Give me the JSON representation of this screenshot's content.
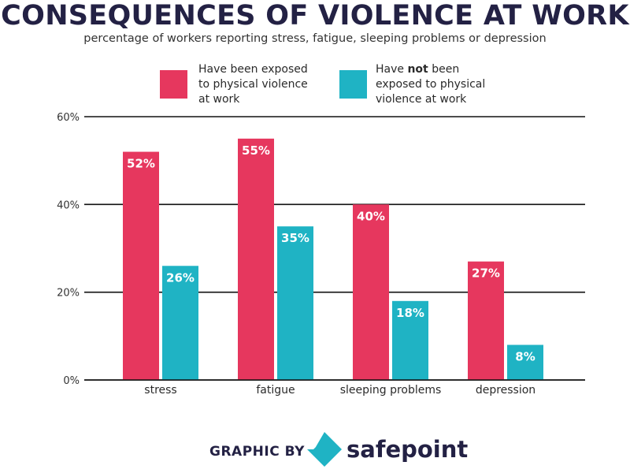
{
  "title": "CONSEQUENCES OF VIOLENCE AT WORK",
  "subtitle": "percentage of workers reporting stress, fatigue, sleeping problems or depression",
  "legend": {
    "exposed": {
      "line1": "Have been exposed",
      "line2": "to physical violence",
      "line3": "at work"
    },
    "not_exposed": {
      "pre": "Have ",
      "bold": "not",
      "post": " been",
      "line2": "exposed to physical",
      "line3": "violence at work"
    }
  },
  "colors": {
    "exposed": "#e6375e",
    "not_exposed": "#1fb3c4",
    "text": "#232144"
  },
  "footer": {
    "graphic_by": "GRAPHIC BY",
    "brand": "safepoint"
  },
  "chart_data": {
    "type": "bar",
    "categories": [
      "stress",
      "fatigue",
      "sleeping problems",
      "depression"
    ],
    "series": [
      {
        "name": "Have been exposed to physical violence at work",
        "values": [
          52,
          55,
          40,
          27
        ],
        "color": "#e6375e"
      },
      {
        "name": "Have not been exposed to physical violence at work",
        "values": [
          26,
          35,
          18,
          8
        ],
        "color": "#1fb3c4"
      }
    ],
    "ylim": [
      0,
      60
    ],
    "yticks": [
      0,
      20,
      40,
      60
    ],
    "ytick_suffix": "%",
    "data_label_suffix": "%",
    "legend_position": "top",
    "grid": true
  }
}
